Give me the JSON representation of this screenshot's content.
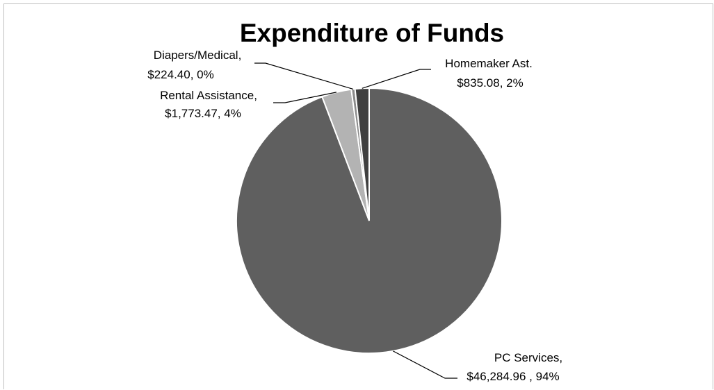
{
  "chart_data": {
    "type": "pie",
    "title": "Expenditure of Funds",
    "start_angle_deg": 0,
    "direction": "clockwise",
    "slices": [
      {
        "name": "PC Services",
        "value": 46284.96,
        "value_label": "$46,284.96",
        "percent_label": "94%",
        "color": "#5f5f5f"
      },
      {
        "name": "Rental Assistance",
        "value": 1773.47,
        "value_label": "$1,773.47",
        "percent_label": "4%",
        "color": "#b3b3b3"
      },
      {
        "name": "Diapers/Medical",
        "value": 224.4,
        "value_label": "$224.40",
        "percent_label": "0%",
        "color": "#8a8a8a"
      },
      {
        "name": "Homemaker Ast.",
        "value": 835.08,
        "value_label": "$835.08",
        "percent_label": "2%",
        "color": "#404040"
      }
    ],
    "labels": [
      {
        "line1": "PC Services,",
        "line2": "$46,284.96 , 94%"
      },
      {
        "line1": "Rental Assistance,",
        "line2": "$1,773.47, 4%"
      },
      {
        "line1": "Diapers/Medical,",
        "line2": "$224.40, 0%"
      },
      {
        "line1": "Homemaker Ast.",
        "line2": "$835.08, 2%"
      }
    ],
    "legend": "none"
  }
}
